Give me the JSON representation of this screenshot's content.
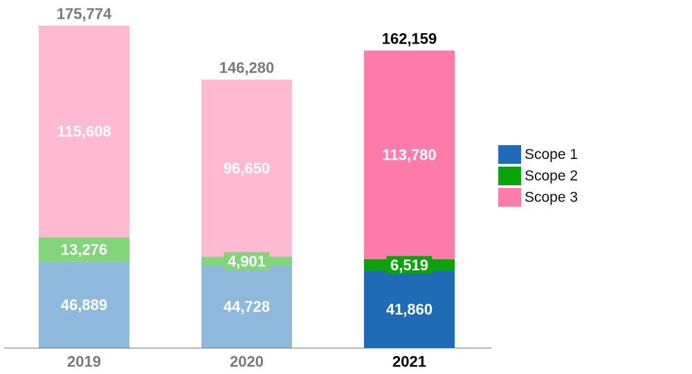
{
  "chart_data": {
    "type": "bar",
    "stacked": true,
    "categories": [
      "2019",
      "2020",
      "2021"
    ],
    "highlight_category": "2021",
    "series": [
      {
        "name": "Scope 1",
        "values": [
          46889,
          44728,
          41860
        ],
        "labels": [
          "46,889",
          "44,728",
          "41,860"
        ],
        "color": "#1f6bb5",
        "muted_color": "#8fb8dd"
      },
      {
        "name": "Scope 2",
        "values": [
          13276,
          4901,
          6519
        ],
        "labels": [
          "13,276",
          "4,901",
          "6,519"
        ],
        "color": "#0aa30a",
        "muted_color": "#82d57a"
      },
      {
        "name": "Scope 3",
        "values": [
          115608,
          96650,
          113780
        ],
        "labels": [
          "115,608",
          "96,650",
          "113,780"
        ],
        "color": "#ff7caa",
        "muted_color": "#ffbad2"
      }
    ],
    "totals": [
      175774,
      146280,
      162159
    ],
    "total_labels": [
      "175,774",
      "146,280",
      "162,159"
    ],
    "ylim": [
      0,
      175774
    ],
    "grid": false,
    "legend_position": "right",
    "colors": {
      "total_label_muted": "#7a7a7a",
      "total_label_highlight": "#000000",
      "baseline": "#777777"
    }
  }
}
